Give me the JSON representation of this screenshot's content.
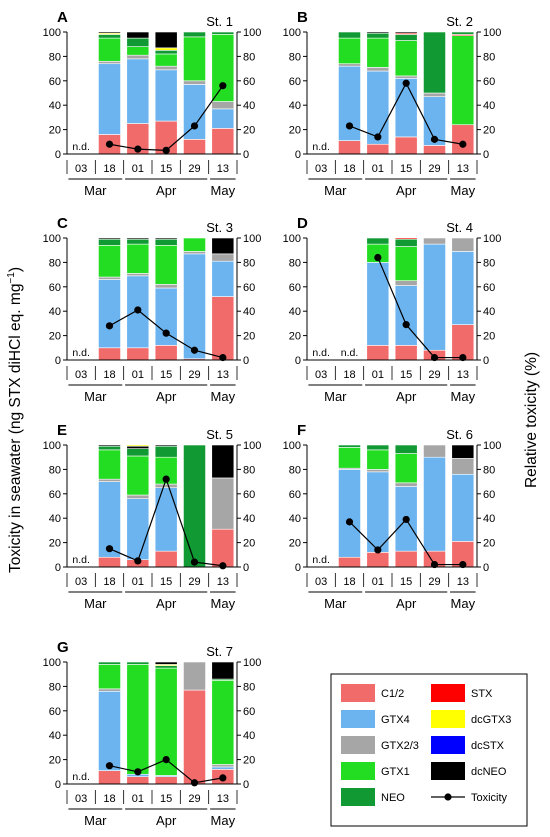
{
  "y_left_label": "Toxicity in seawater (ng STX diHCl eq. mg",
  "y_left_label_sup": "−1",
  "y_left_label_end": ")",
  "y_right_label": "Relative toxicity (%)",
  "nd_label": "n.d.",
  "x_dates": [
    "03",
    "18",
    "01",
    "15",
    "29",
    "13"
  ],
  "months": [
    "Mar",
    "Apr",
    "May"
  ],
  "yticks": [
    "0",
    "20",
    "40",
    "60",
    "80",
    "100"
  ],
  "legend": [
    {
      "name": "C1/2",
      "color": "#f26b6b",
      "type": "box"
    },
    {
      "name": "STX",
      "color": "#ff0000",
      "type": "box"
    },
    {
      "name": "GTX4",
      "color": "#6cb4f0",
      "type": "box"
    },
    {
      "name": "dcGTX3",
      "color": "#ffff00",
      "type": "box"
    },
    {
      "name": "GTX2/3",
      "color": "#a6a6a6",
      "type": "box"
    },
    {
      "name": "dcSTX",
      "color": "#0000ff",
      "type": "box"
    },
    {
      "name": "GTX1",
      "color": "#22dd22",
      "type": "box"
    },
    {
      "name": "dcNEO",
      "color": "#000000",
      "type": "box"
    },
    {
      "name": "NEO",
      "color": "#119933",
      "type": "box"
    },
    {
      "name": "Toxicity",
      "color": "#000000",
      "type": "line"
    }
  ],
  "chart_data": [
    {
      "panel": "A",
      "station": "St. 1",
      "type": "bar",
      "categories": [
        "03 Mar",
        "18 Mar",
        "01 Apr",
        "15 Apr",
        "29 Apr",
        "13 May"
      ],
      "nd_categories": [
        "03 Mar"
      ],
      "ylim": [
        0,
        100
      ],
      "y2lim": [
        0,
        100
      ],
      "stacks": [
        null,
        [
          [
            "C1/2",
            16
          ],
          [
            "GTX4",
            58
          ],
          [
            "GTX2/3",
            2
          ],
          [
            "GTX1",
            19
          ],
          [
            "NEO",
            3
          ],
          [
            "dcGTX3",
            1
          ],
          [
            "dcNEO",
            1
          ]
        ],
        [
          [
            "C1/2",
            25
          ],
          [
            "GTX4",
            53
          ],
          [
            "GTX2/3",
            3
          ],
          [
            "GTX1",
            7
          ],
          [
            "NEO",
            7
          ],
          [
            "dcNEO",
            5
          ]
        ],
        [
          [
            "C1/2",
            27
          ],
          [
            "GTX4",
            42
          ],
          [
            "GTX2/3",
            3
          ],
          [
            "GTX1",
            10
          ],
          [
            "NEO",
            3
          ],
          [
            "dcGTX3",
            2
          ],
          [
            "dcNEO",
            13
          ]
        ],
        [
          [
            "C1/2",
            12
          ],
          [
            "GTX4",
            45
          ],
          [
            "GTX2/3",
            3
          ],
          [
            "GTX1",
            36
          ],
          [
            "NEO",
            4
          ]
        ],
        [
          [
            "C1/2",
            21
          ],
          [
            "GTX4",
            16
          ],
          [
            "GTX2/3",
            6
          ],
          [
            "GTX1",
            55
          ],
          [
            "NEO",
            2
          ]
        ]
      ],
      "toxicity": [
        null,
        8,
        4,
        3,
        23,
        56
      ]
    },
    {
      "panel": "B",
      "station": "St. 2",
      "type": "bar",
      "categories": [
        "03 Mar",
        "18 Mar",
        "01 Apr",
        "15 Apr",
        "29 Apr",
        "13 May"
      ],
      "nd_categories": [
        "03 Mar"
      ],
      "ylim": [
        0,
        100
      ],
      "y2lim": [
        0,
        100
      ],
      "stacks": [
        null,
        [
          [
            "C1/2",
            11
          ],
          [
            "GTX4",
            61
          ],
          [
            "GTX2/3",
            2
          ],
          [
            "GTX1",
            21
          ],
          [
            "NEO",
            5
          ]
        ],
        [
          [
            "C1/2",
            8
          ],
          [
            "GTX4",
            60
          ],
          [
            "GTX2/3",
            3
          ],
          [
            "GTX1",
            24
          ],
          [
            "NEO",
            4
          ],
          [
            "dcNEO",
            1
          ]
        ],
        [
          [
            "C1/2",
            14
          ],
          [
            "GTX4",
            48
          ],
          [
            "GTX2/3",
            2
          ],
          [
            "GTX1",
            29
          ],
          [
            "NEO",
            5
          ],
          [
            "STX",
            1
          ],
          [
            "dcNEO",
            1
          ]
        ],
        [
          [
            "C1/2",
            7
          ],
          [
            "GTX4",
            40
          ],
          [
            "GTX2/3",
            3
          ],
          [
            "NEO",
            50
          ]
        ],
        [
          [
            "C1/2",
            24
          ],
          [
            "GTX1",
            73
          ],
          [
            "STX",
            1
          ],
          [
            "NEO",
            2
          ]
        ]
      ],
      "toxicity": [
        null,
        23,
        14,
        58,
        12,
        8
      ]
    },
    {
      "panel": "C",
      "station": "St. 3",
      "type": "bar",
      "categories": [
        "03 Mar",
        "18 Mar",
        "01 Apr",
        "15 Apr",
        "29 Apr",
        "13 May"
      ],
      "nd_categories": [
        "03 Mar"
      ],
      "ylim": [
        0,
        100
      ],
      "y2lim": [
        0,
        100
      ],
      "stacks": [
        null,
        [
          [
            "C1/2",
            10
          ],
          [
            "GTX4",
            56
          ],
          [
            "GTX2/3",
            2
          ],
          [
            "GTX1",
            26
          ],
          [
            "NEO",
            5
          ],
          [
            "dcNEO",
            1
          ]
        ],
        [
          [
            "C1/2",
            10
          ],
          [
            "GTX4",
            59
          ],
          [
            "GTX2/3",
            2
          ],
          [
            "GTX1",
            24
          ],
          [
            "NEO",
            4
          ],
          [
            "dcNEO",
            1
          ]
        ],
        [
          [
            "C1/2",
            12
          ],
          [
            "GTX4",
            47
          ],
          [
            "GTX2/3",
            3
          ],
          [
            "GTX1",
            32
          ],
          [
            "NEO",
            5
          ],
          [
            "dcNEO",
            1
          ]
        ],
        [
          [
            "C1/2",
            1
          ],
          [
            "GTX4",
            86
          ],
          [
            "GTX2/3",
            2
          ],
          [
            "GTX1",
            11
          ]
        ],
        [
          [
            "C1/2",
            52
          ],
          [
            "GTX4",
            29
          ],
          [
            "GTX2/3",
            6
          ],
          [
            "dcNEO",
            13
          ]
        ]
      ],
      "toxicity": [
        null,
        28,
        41,
        22,
        8,
        2
      ]
    },
    {
      "panel": "D",
      "station": "St. 4",
      "type": "bar",
      "categories": [
        "03 Mar",
        "18 Mar",
        "01 Apr",
        "15 Apr",
        "29 Apr",
        "13 May"
      ],
      "nd_categories": [
        "03 Mar",
        "18 Mar"
      ],
      "ylim": [
        0,
        100
      ],
      "y2lim": [
        0,
        100
      ],
      "stacks": [
        null,
        null,
        [
          [
            "C1/2",
            12
          ],
          [
            "GTX4",
            68
          ],
          [
            "GTX1",
            15
          ],
          [
            "NEO",
            5
          ]
        ],
        [
          [
            "C1/2",
            12
          ],
          [
            "GTX4",
            49
          ],
          [
            "GTX2/3",
            4
          ],
          [
            "GTX1",
            28
          ],
          [
            "NEO",
            6
          ],
          [
            "STX",
            1
          ]
        ],
        [
          [
            "C1/2",
            8
          ],
          [
            "GTX4",
            87
          ],
          [
            "GTX2/3",
            5
          ]
        ],
        [
          [
            "C1/2",
            29
          ],
          [
            "GTX4",
            60
          ],
          [
            "GTX2/3",
            11
          ]
        ]
      ],
      "toxicity": [
        null,
        null,
        84,
        29,
        2,
        2
      ]
    },
    {
      "panel": "E",
      "station": "St. 5",
      "type": "bar",
      "categories": [
        "03 Mar",
        "18 Mar",
        "01 Apr",
        "15 Apr",
        "29 Apr",
        "13 May"
      ],
      "nd_categories": [
        "03 Mar"
      ],
      "ylim": [
        0,
        100
      ],
      "y2lim": [
        0,
        100
      ],
      "stacks": [
        null,
        [
          [
            "C1/2",
            8
          ],
          [
            "GTX4",
            62
          ],
          [
            "GTX2/3",
            2
          ],
          [
            "GTX1",
            24
          ],
          [
            "NEO",
            3
          ],
          [
            "dcNEO",
            1
          ]
        ],
        [
          [
            "C1/2",
            6
          ],
          [
            "GTX4",
            50
          ],
          [
            "GTX2/3",
            3
          ],
          [
            "GTX1",
            32
          ],
          [
            "NEO",
            6
          ],
          [
            "dcNEO",
            2
          ],
          [
            "dcGTX3",
            1
          ]
        ],
        [
          [
            "C1/2",
            13
          ],
          [
            "GTX4",
            52
          ],
          [
            "GTX2/3",
            3
          ],
          [
            "GTX1",
            22
          ],
          [
            "NEO",
            9
          ],
          [
            "dcNEO",
            1
          ]
        ],
        [
          [
            "NEO",
            100
          ]
        ],
        [
          [
            "C1/2",
            31
          ],
          [
            "GTX2/3",
            42
          ],
          [
            "dcNEO",
            27
          ]
        ]
      ],
      "toxicity": [
        null,
        15,
        5,
        72,
        4,
        1
      ]
    },
    {
      "panel": "F",
      "station": "St. 6",
      "type": "bar",
      "categories": [
        "03 Mar",
        "18 Mar",
        "01 Apr",
        "15 Apr",
        "29 Apr",
        "13 May"
      ],
      "nd_categories": [
        "03 Mar"
      ],
      "ylim": [
        0,
        100
      ],
      "y2lim": [
        0,
        100
      ],
      "stacks": [
        null,
        [
          [
            "C1/2",
            8
          ],
          [
            "GTX4",
            72
          ],
          [
            "GTX2/3",
            1
          ],
          [
            "GTX1",
            17
          ],
          [
            "NEO",
            2
          ]
        ],
        [
          [
            "C1/2",
            12
          ],
          [
            "GTX4",
            66
          ],
          [
            "GTX2/3",
            2
          ],
          [
            "GTX1",
            16
          ],
          [
            "NEO",
            4
          ]
        ],
        [
          [
            "C1/2",
            13
          ],
          [
            "GTX4",
            53
          ],
          [
            "GTX2/3",
            3
          ],
          [
            "GTX1",
            24
          ],
          [
            "NEO",
            7
          ]
        ],
        [
          [
            "C1/2",
            13
          ],
          [
            "GTX4",
            77
          ],
          [
            "GTX2/3",
            10
          ]
        ],
        [
          [
            "C1/2",
            21
          ],
          [
            "GTX4",
            55
          ],
          [
            "GTX2/3",
            13
          ],
          [
            "dcNEO",
            11
          ]
        ]
      ],
      "toxicity": [
        null,
        37,
        14,
        39,
        2,
        2
      ]
    },
    {
      "panel": "G",
      "station": "St. 7",
      "type": "bar",
      "categories": [
        "03 Mar",
        "18 Mar",
        "01 Apr",
        "15 Apr",
        "29 Apr",
        "13 May"
      ],
      "nd_categories": [
        "03 Mar"
      ],
      "ylim": [
        0,
        100
      ],
      "y2lim": [
        0,
        100
      ],
      "stacks": [
        null,
        [
          [
            "C1/2",
            11
          ],
          [
            "GTX4",
            65
          ],
          [
            "GTX2/3",
            2
          ],
          [
            "GTX1",
            20
          ],
          [
            "NEO",
            2
          ]
        ],
        [
          [
            "C1/2",
            6
          ],
          [
            "GTX4",
            2
          ],
          [
            "GTX1",
            90
          ],
          [
            "NEO",
            2
          ]
        ],
        [
          [
            "C1/2",
            6
          ],
          [
            "GTX4",
            1
          ],
          [
            "GTX1",
            88
          ],
          [
            "NEO",
            2
          ],
          [
            "dcGTX3",
            1
          ],
          [
            "dcNEO",
            2
          ]
        ],
        [
          [
            "C1/2",
            77
          ],
          [
            "GTX2/3",
            23
          ]
        ],
        [
          [
            "C1/2",
            12
          ],
          [
            "GTX4",
            2
          ],
          [
            "GTX2/3",
            2
          ],
          [
            "GTX1",
            69
          ],
          [
            "NEO",
            1
          ],
          [
            "dcNEO",
            14
          ]
        ]
      ],
      "toxicity": [
        null,
        15,
        10,
        20,
        1,
        5
      ]
    }
  ]
}
